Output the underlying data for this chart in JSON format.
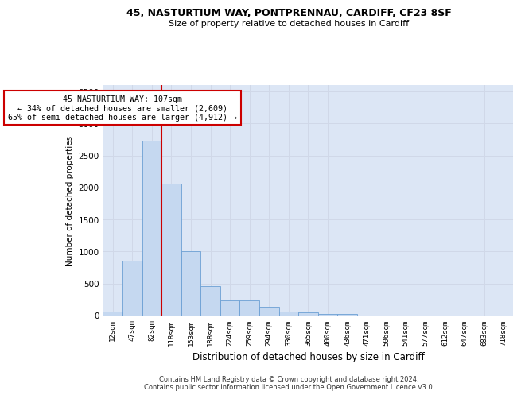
{
  "title_line1": "45, NASTURTIUM WAY, PONTPRENNAU, CARDIFF, CF23 8SF",
  "title_line2": "Size of property relative to detached houses in Cardiff",
  "xlabel": "Distribution of detached houses by size in Cardiff",
  "ylabel": "Number of detached properties",
  "categories": [
    "12sqm",
    "47sqm",
    "82sqm",
    "118sqm",
    "153sqm",
    "188sqm",
    "224sqm",
    "259sqm",
    "294sqm",
    "330sqm",
    "365sqm",
    "400sqm",
    "436sqm",
    "471sqm",
    "506sqm",
    "541sqm",
    "577sqm",
    "612sqm",
    "647sqm",
    "683sqm",
    "718sqm"
  ],
  "values": [
    60,
    855,
    2730,
    2060,
    1005,
    460,
    235,
    230,
    135,
    65,
    50,
    30,
    25,
    0,
    0,
    0,
    0,
    0,
    0,
    0,
    0
  ],
  "bar_color": "#c5d8f0",
  "bar_edge_color": "#6b9fd4",
  "vline_color": "#cc0000",
  "vline_x_index": 2,
  "annotation_line1": "45 NASTURTIUM WAY: 107sqm",
  "annotation_line2": "← 34% of detached houses are smaller (2,609)",
  "annotation_line3": "65% of semi-detached houses are larger (4,912) →",
  "annotation_box_edgecolor": "#cc0000",
  "annotation_box_facecolor": "#ffffff",
  "ylim": [
    0,
    3600
  ],
  "yticks": [
    0,
    500,
    1000,
    1500,
    2000,
    2500,
    3000,
    3500
  ],
  "grid_color": "#d0d8e8",
  "bg_color": "#dce6f5",
  "footer_line1": "Contains HM Land Registry data © Crown copyright and database right 2024.",
  "footer_line2": "Contains public sector information licensed under the Open Government Licence v3.0."
}
